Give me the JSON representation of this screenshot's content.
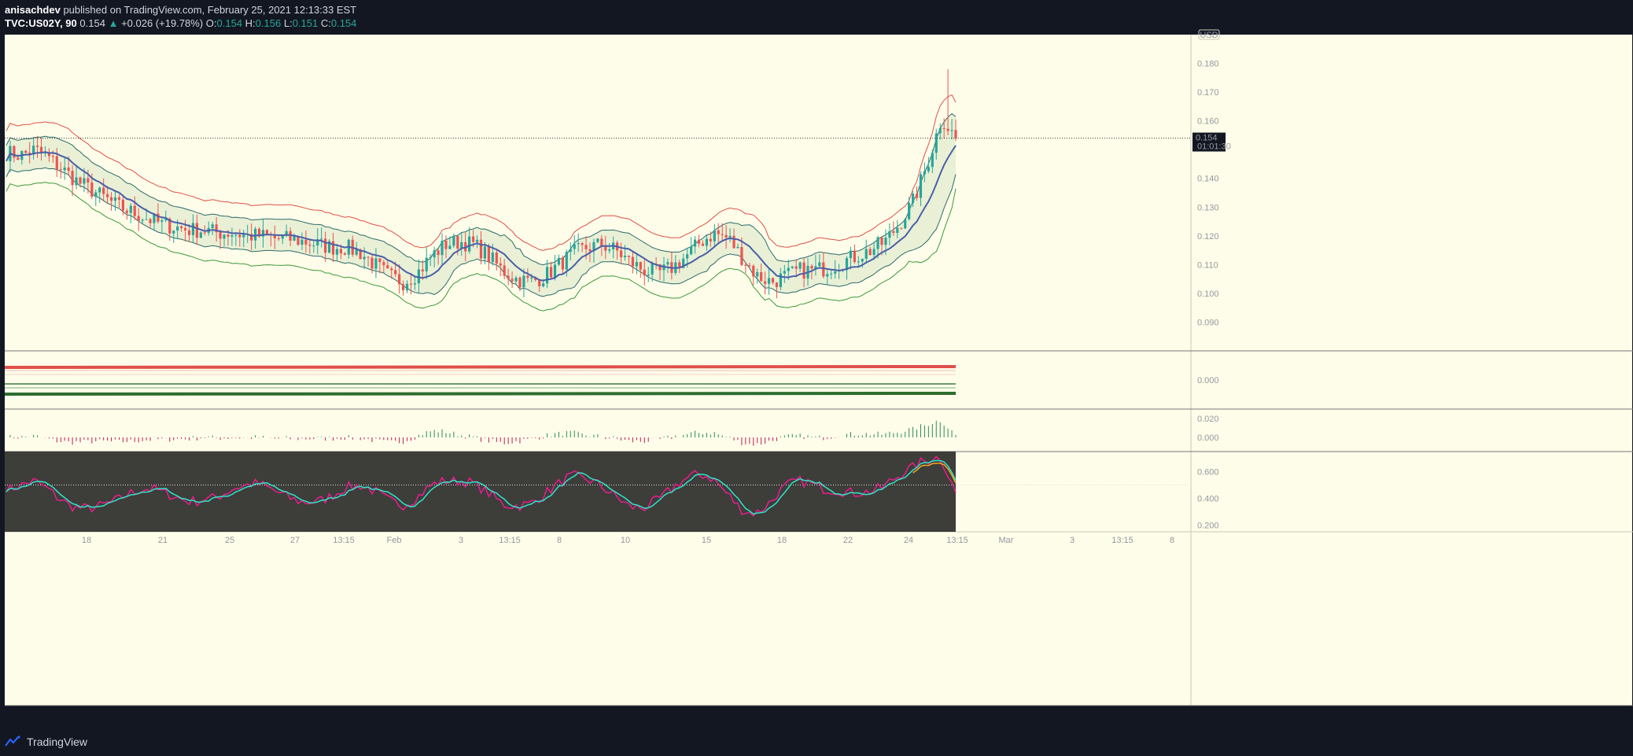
{
  "header": {
    "author": "anisachdev",
    "published": "published on TradingView.com, February 25, 2021 12:13:33 EST",
    "symbol": "TVC:US02Y, 90",
    "last": "0.154",
    "change_arrow": "▲",
    "change": "+0.026 (+19.78%)",
    "o_label": "O:",
    "o_value": "0.154",
    "h_label": "H:",
    "h_value": "0.156",
    "l_label": "L:",
    "l_value": "0.151",
    "c_label": "C:",
    "c_value": "0.154"
  },
  "footer": {
    "brand": "TradingView"
  },
  "colors": {
    "background": "#fefde9",
    "up": "#26a69a",
    "down": "#ef5350",
    "bb_inner": "#2c6b6b",
    "bb_upper_outer": "#e0504a",
    "bb_lower_outer": "#3c9a3c",
    "basis": "#4a5fa8",
    "oscillator_bg": "#3d3d3a",
    "oscillator_fast": "#e91e8c",
    "oscillator_slow": "#2ee6c6",
    "oscillator_signal": "#f5a623"
  },
  "chart_data": {
    "type": "candlestick",
    "price_last_label": "0.154",
    "countdown_label": "01:01:30",
    "currency_label": "USD",
    "x_ticks": [
      "18",
      "21",
      "25",
      "27",
      "13:15",
      "Feb",
      "3",
      "13:15",
      "8",
      "10",
      "15",
      "18",
      "22",
      "24",
      "13:15",
      "Mar",
      "3",
      "13:15",
      "8"
    ],
    "price_axis": {
      "ylim": [
        0.08,
        0.19
      ],
      "ticks": [
        "0.180",
        "0.170",
        "0.160",
        "0.140",
        "0.130",
        "0.120",
        "0.110",
        "0.100",
        "0.090"
      ]
    },
    "close_path": [
      0.149,
      0.148,
      0.15,
      0.147,
      0.143,
      0.139,
      0.136,
      0.133,
      0.13,
      0.128,
      0.126,
      0.124,
      0.123,
      0.122,
      0.122,
      0.121,
      0.121,
      0.12,
      0.12,
      0.119,
      0.119,
      0.118,
      0.117,
      0.116,
      0.116,
      0.114,
      0.11,
      0.106,
      0.104,
      0.107,
      0.113,
      0.117,
      0.118,
      0.117,
      0.113,
      0.108,
      0.105,
      0.104,
      0.106,
      0.11,
      0.114,
      0.116,
      0.117,
      0.115,
      0.111,
      0.108,
      0.107,
      0.109,
      0.113,
      0.118,
      0.121,
      0.119,
      0.112,
      0.106,
      0.104,
      0.106,
      0.108,
      0.108,
      0.109,
      0.111,
      0.113,
      0.115,
      0.118,
      0.124,
      0.132,
      0.145,
      0.161,
      0.154
    ],
    "pane2": {
      "ticks": [
        "0.000"
      ]
    },
    "pane3": {
      "ticks": [
        "0.020",
        "0.000"
      ]
    },
    "pane4": {
      "ticks": [
        "0.600",
        "0.400",
        "0.200"
      ],
      "ylim": [
        0.15,
        0.75
      ]
    }
  }
}
